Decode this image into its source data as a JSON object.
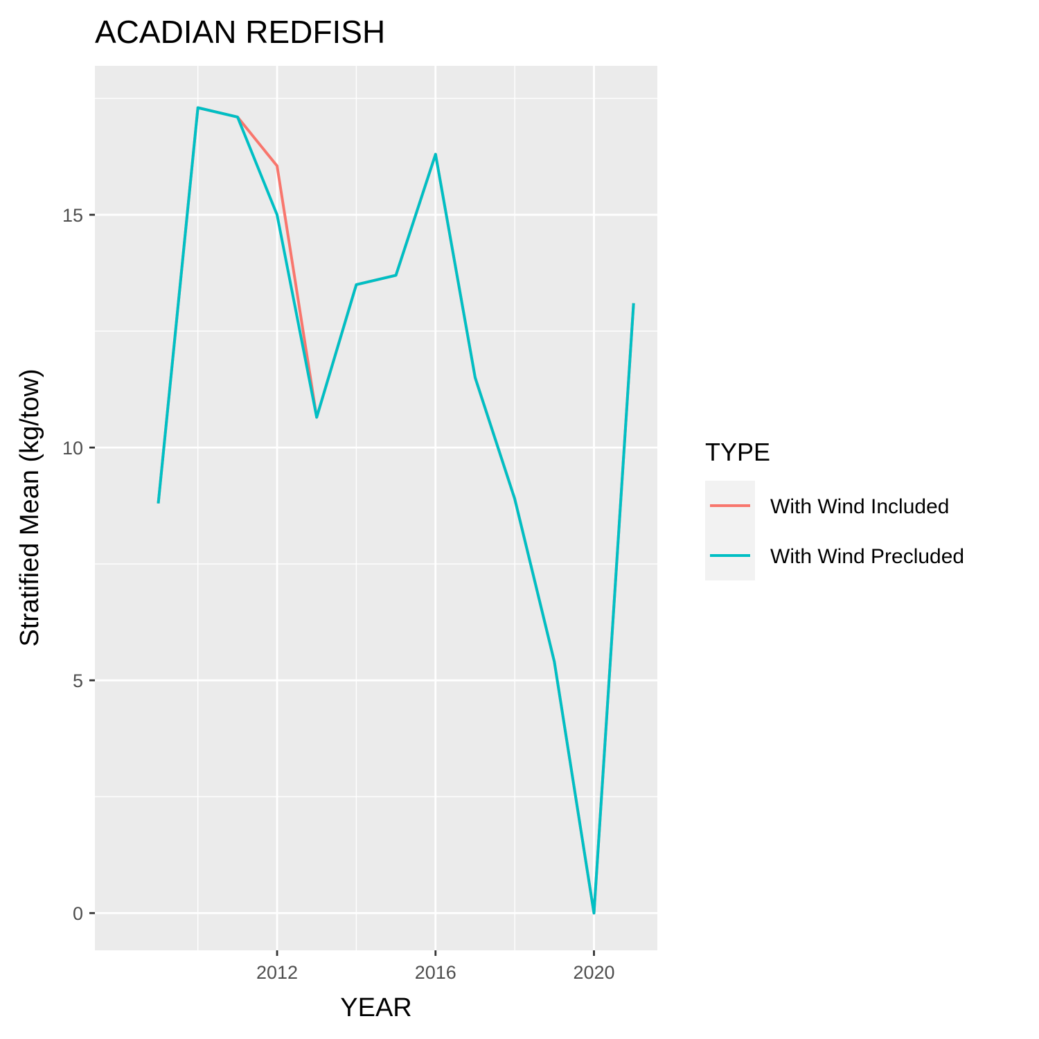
{
  "chart_data": {
    "type": "line",
    "title": "ACADIAN REDFISH",
    "xlabel": "YEAR",
    "ylabel": "Stratified Mean (kg/tow)",
    "x": [
      2009,
      2010,
      2011,
      2012,
      2013,
      2014,
      2015,
      2016,
      2017,
      2018,
      2019,
      2020,
      2021
    ],
    "xlim": [
      2007.4,
      2021.6
    ],
    "ylim": [
      -0.8,
      18.2
    ],
    "x_ticks": [
      2012,
      2016,
      2020
    ],
    "y_ticks": [
      0,
      5,
      10,
      15
    ],
    "x_tick_labels": [
      "2012",
      "2016",
      "2020"
    ],
    "y_tick_labels": [
      "0",
      "5",
      "10",
      "15"
    ],
    "grid": true,
    "legend": {
      "title": "TYPE",
      "position": "right"
    },
    "series": [
      {
        "name": "With Wind Included",
        "color": "#F8766D",
        "values": [
          8.8,
          17.3,
          17.1,
          16.05,
          10.65,
          13.5,
          13.7,
          16.3,
          11.5,
          8.9,
          5.4,
          0.0,
          13.1
        ]
      },
      {
        "name": "With Wind Precluded",
        "color": "#00BFC4",
        "values": [
          8.8,
          17.3,
          17.1,
          15.0,
          10.65,
          13.5,
          13.7,
          16.3,
          11.5,
          8.9,
          5.4,
          0.0,
          13.1
        ]
      }
    ]
  }
}
